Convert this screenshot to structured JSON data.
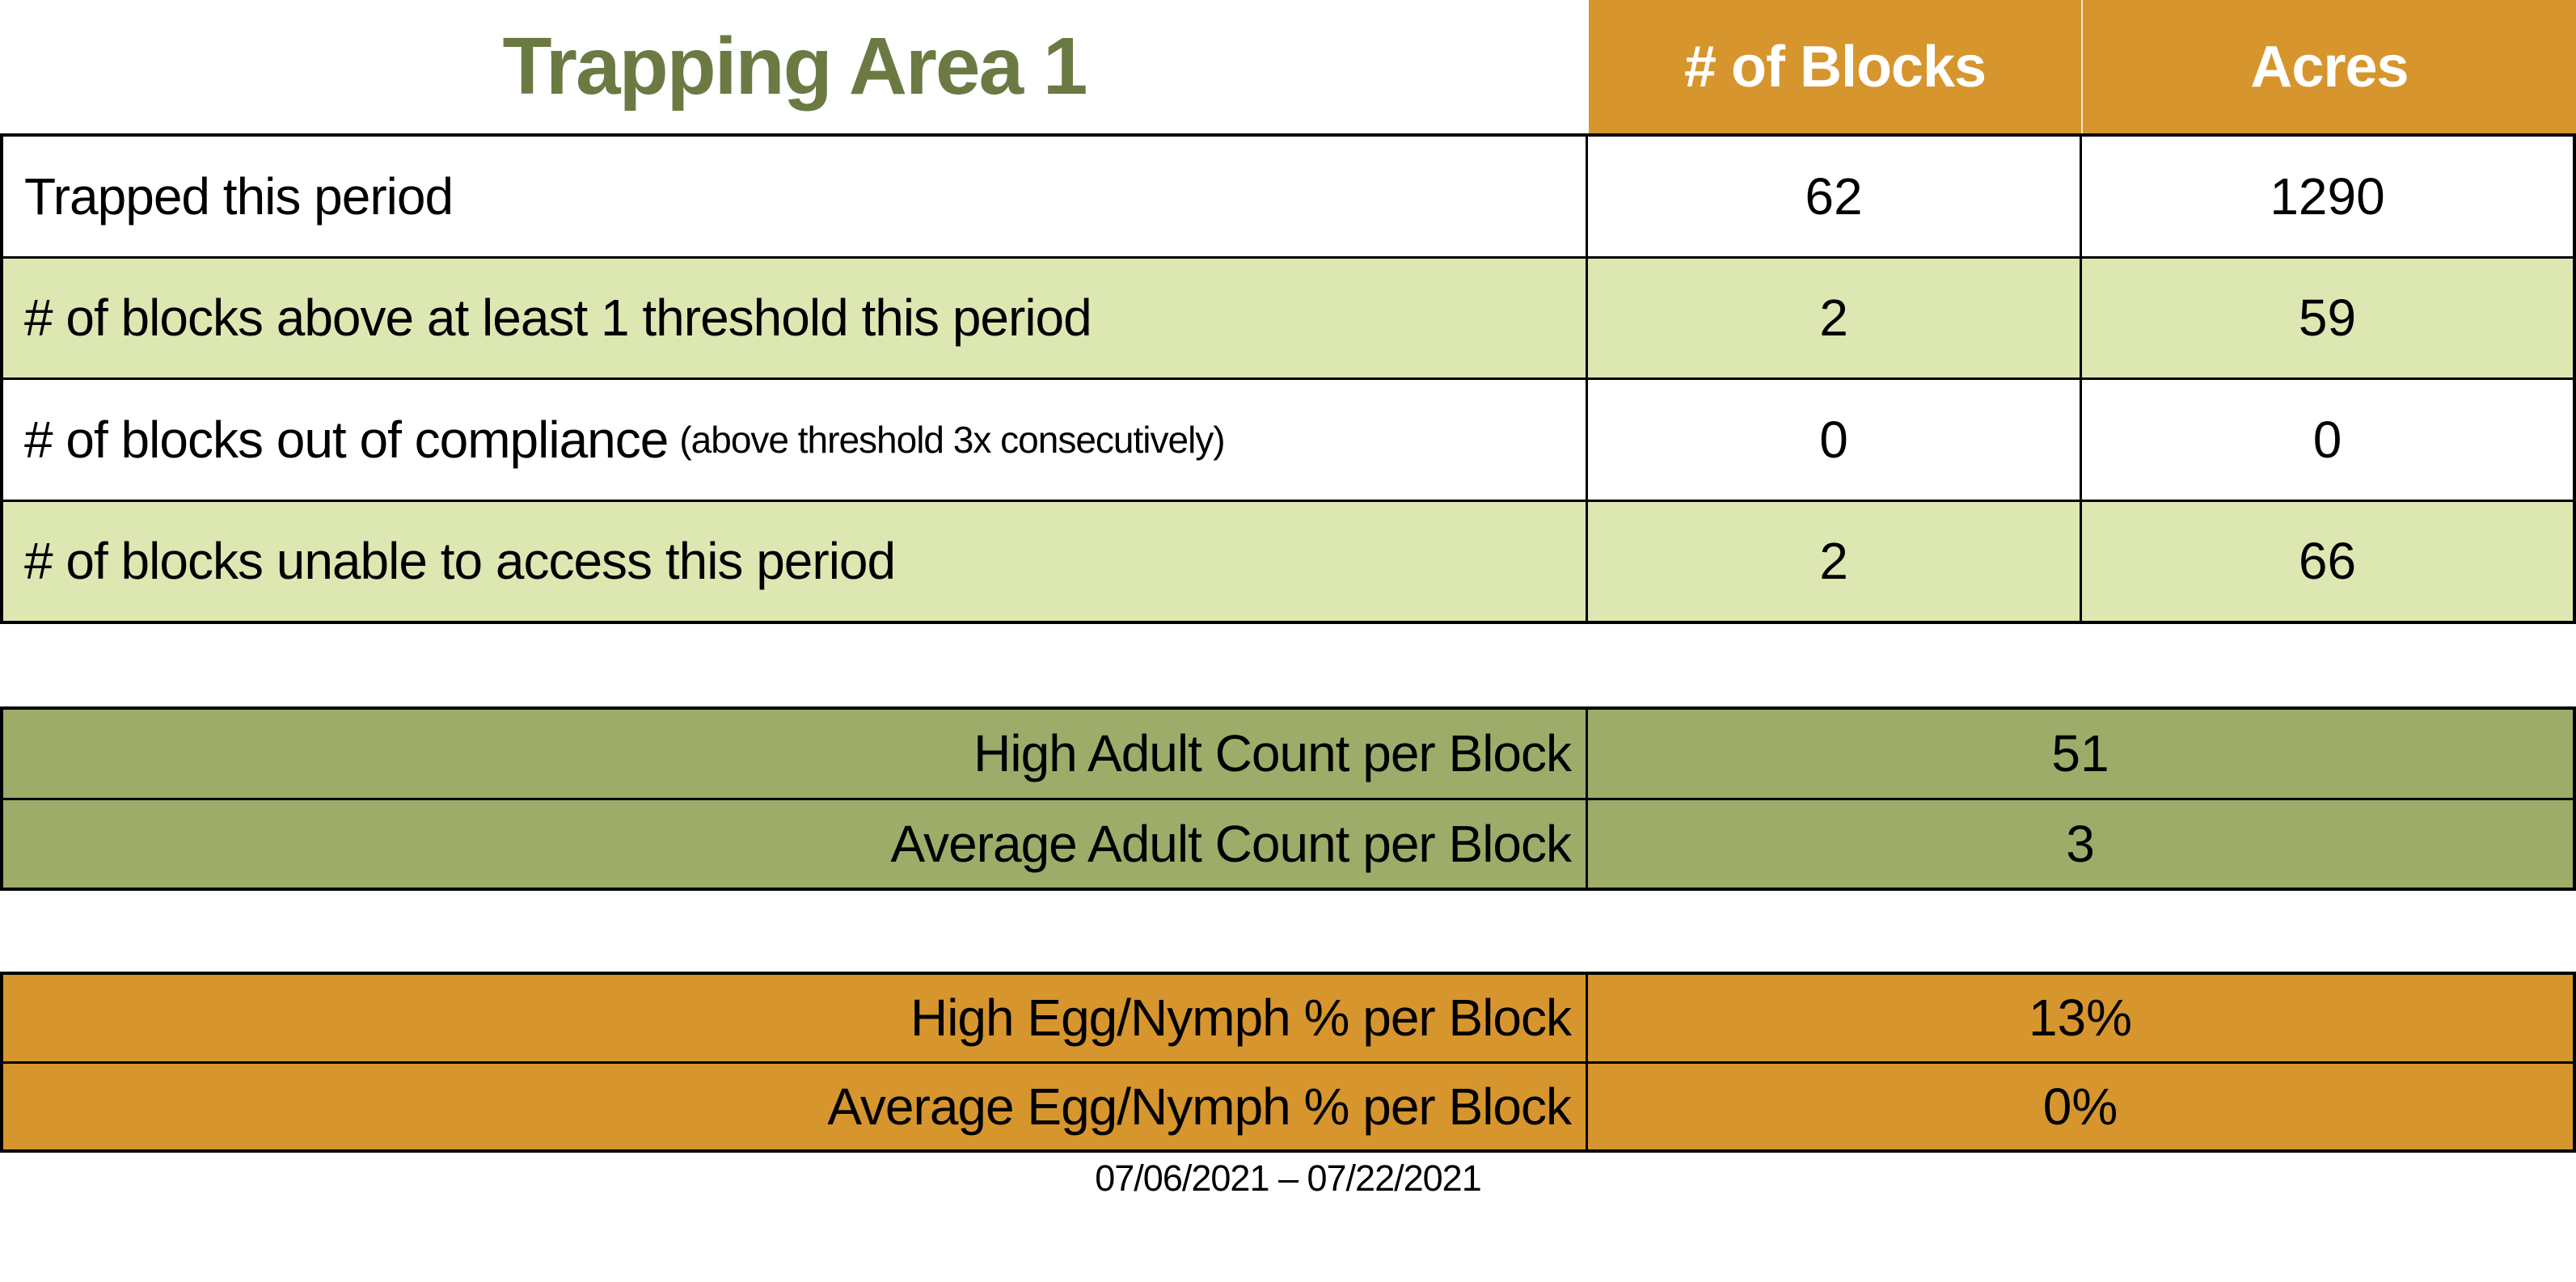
{
  "title": "Trapping Area 1",
  "date_range": "07/06/2021 – 07/22/2021",
  "colors": {
    "orange": "#D6952D",
    "light_green": "#DCE7B2",
    "olive_green": "#9DAC69",
    "title_green": "#6B7A42",
    "header_text": "#FFFFFF",
    "body_text": "#000000"
  },
  "header": {
    "col_blocks": "# of Blocks",
    "col_acres": "Acres"
  },
  "main_table": {
    "rows": [
      {
        "label": "Trapped this period",
        "note": "",
        "blocks": "62",
        "acres": "1290"
      },
      {
        "label": "# of blocks above at least 1 threshold this period",
        "note": "",
        "blocks": "2",
        "acres": "59"
      },
      {
        "label": "# of blocks out of compliance",
        "note": "(above threshold 3x consecutively)",
        "blocks": "0",
        "acres": "0"
      },
      {
        "label": "# of blocks unable to access this period",
        "note": "",
        "blocks": "2",
        "acres": "66"
      }
    ]
  },
  "adult_table": {
    "rows": [
      {
        "label": "High Adult Count per Block",
        "value": "51"
      },
      {
        "label": "Average Adult Count per Block",
        "value": "3"
      }
    ]
  },
  "egg_table": {
    "rows": [
      {
        "label": "High Egg/Nymph % per Block",
        "value": "13%"
      },
      {
        "label": "Average Egg/Nymph % per Block",
        "value": "0%"
      }
    ]
  }
}
